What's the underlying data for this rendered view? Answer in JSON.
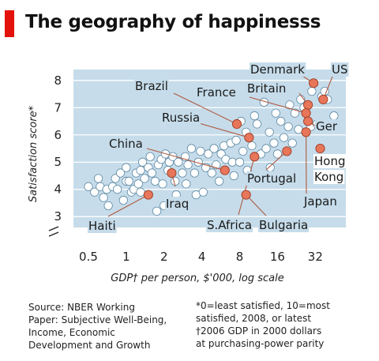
{
  "title": "The geography of happinesss",
  "source_lines": [
    "Source: NBER Working",
    "Paper: Subjective Well-Being,",
    "Income, Economic",
    "Development and Growth"
  ],
  "footnote_lines": [
    "*0=least satisfied, 10=most",
    "satisfied, 2008, or latest",
    "†2006 GDP in 2000 dollars",
    "at purchasing-power parity"
  ],
  "colors": {
    "accent_red": "#e3120b",
    "plot_background": "#c6dcea",
    "gridline": "#ffffff",
    "highlight_fill": "#e8765a",
    "highlight_stroke": "#9e3b24",
    "leader_line": "#b05a40",
    "other_fill": "#ffffff",
    "other_stroke": "#5f8aa6"
  },
  "chart_data": {
    "type": "scatter",
    "title": "The geography of happinesss",
    "xlabel": "GDP† per person, $'000, log scale",
    "ylabel": "Satisfaction score*",
    "x_scale": "log2",
    "xlim": [
      0.38,
      56
    ],
    "ylim": [
      2.6,
      8.4
    ],
    "x_ticks": [
      0.5,
      1,
      2,
      4,
      8,
      16,
      32
    ],
    "x_tick_labels": [
      "0.5",
      "1",
      "2",
      "4",
      "8",
      "16",
      "32"
    ],
    "y_ticks": [
      3,
      4,
      5,
      6,
      7,
      8
    ],
    "y_tick_labels": [
      "3",
      "4",
      "5",
      "6",
      "7",
      "8"
    ],
    "y_axis_break": true,
    "grid": "horizontal",
    "legend": "none",
    "highlighted": [
      {
        "label": "Denmark",
        "x": 31,
        "y": 7.9
      },
      {
        "label": "US",
        "x": 37,
        "y": 7.3
      },
      {
        "label": "Britain",
        "x": 28,
        "y": 7.1
      },
      {
        "label": "France",
        "x": 27,
        "y": 6.8
      },
      {
        "label": "Ger",
        "x": 28,
        "y": 6.5
      },
      {
        "label": "Brazil",
        "x": 7.6,
        "y": 6.4
      },
      {
        "label": "Russia",
        "x": 9.5,
        "y": 5.9
      },
      {
        "label": "China",
        "x": 6.1,
        "y": 4.7
      },
      {
        "label": "S.Africa",
        "x": 10.5,
        "y": 5.2
      },
      {
        "label": "Portugal",
        "x": 19,
        "y": 5.4
      },
      {
        "label": "Hong Kong",
        "x": 35,
        "y": 5.5
      },
      {
        "label": "Japan",
        "x": 27,
        "y": 6.1
      },
      {
        "label": "Bulgaria",
        "x": 9,
        "y": 3.8
      },
      {
        "label": "Iraq",
        "x": 2.3,
        "y": 4.6
      },
      {
        "label": "Haiti",
        "x": 1.5,
        "y": 3.8
      }
    ],
    "others": [
      [
        0.5,
        4.1
      ],
      [
        0.56,
        3.9
      ],
      [
        0.6,
        4.4
      ],
      [
        0.62,
        4.1
      ],
      [
        0.66,
        3.7
      ],
      [
        0.7,
        4.0
      ],
      [
        0.72,
        3.4
      ],
      [
        0.78,
        4.1
      ],
      [
        0.82,
        4.4
      ],
      [
        0.85,
        4.0
      ],
      [
        0.9,
        4.6
      ],
      [
        0.95,
        3.6
      ],
      [
        1.0,
        4.3
      ],
      [
        1.0,
        4.8
      ],
      [
        1.05,
        4.3
      ],
      [
        1.1,
        3.9
      ],
      [
        1.15,
        4.0
      ],
      [
        1.2,
        4.6
      ],
      [
        1.25,
        4.2
      ],
      [
        1.3,
        4.7
      ],
      [
        1.3,
        3.9
      ],
      [
        1.35,
        5.0
      ],
      [
        1.4,
        4.4
      ],
      [
        1.5,
        4.8
      ],
      [
        1.55,
        5.2
      ],
      [
        1.6,
        4.6
      ],
      [
        1.7,
        4.3
      ],
      [
        1.75,
        3.2
      ],
      [
        1.8,
        4.9
      ],
      [
        1.9,
        5.1
      ],
      [
        1.95,
        4.2
      ],
      [
        2.0,
        3.4
      ],
      [
        2.05,
        5.3
      ],
      [
        2.15,
        4.7
      ],
      [
        2.2,
        5.0
      ],
      [
        2.35,
        5.2
      ],
      [
        2.45,
        4.3
      ],
      [
        2.5,
        3.8
      ],
      [
        2.6,
        5.0
      ],
      [
        2.8,
        4.6
      ],
      [
        2.95,
        5.2
      ],
      [
        3.0,
        4.2
      ],
      [
        3.1,
        4.9
      ],
      [
        3.3,
        5.5
      ],
      [
        3.5,
        4.6
      ],
      [
        3.6,
        3.8
      ],
      [
        3.75,
        5.0
      ],
      [
        3.9,
        5.4
      ],
      [
        4.1,
        3.9
      ],
      [
        4.3,
        4.8
      ],
      [
        4.5,
        5.3
      ],
      [
        4.8,
        4.6
      ],
      [
        5.0,
        5.5
      ],
      [
        5.2,
        4.9
      ],
      [
        5.5,
        4.3
      ],
      [
        5.7,
        5.3
      ],
      [
        6.0,
        5.6
      ],
      [
        6.2,
        5.1
      ],
      [
        6.8,
        5.7
      ],
      [
        7.0,
        5.0
      ],
      [
        7.2,
        4.5
      ],
      [
        7.5,
        5.8
      ],
      [
        8.0,
        5.0
      ],
      [
        8.2,
        6.5
      ],
      [
        8.5,
        5.4
      ],
      [
        9.0,
        6.1
      ],
      [
        9.2,
        4.7
      ],
      [
        10.0,
        5.6
      ],
      [
        10.5,
        6.7
      ],
      [
        11.0,
        6.4
      ],
      [
        11.8,
        5.3
      ],
      [
        12.5,
        7.2
      ],
      [
        13.0,
        5.5
      ],
      [
        13.8,
        6.1
      ],
      [
        14.0,
        4.8
      ],
      [
        15.0,
        5.7
      ],
      [
        15.5,
        6.8
      ],
      [
        16.0,
        5.3
      ],
      [
        17.0,
        6.5
      ],
      [
        18.0,
        5.9
      ],
      [
        19.5,
        6.3
      ],
      [
        20.0,
        7.1
      ],
      [
        21.0,
        5.7
      ],
      [
        22.0,
        6.8
      ],
      [
        23.5,
        6.2
      ],
      [
        24.5,
        7.3
      ],
      [
        26.0,
        7.0
      ],
      [
        29.5,
        6.3
      ],
      [
        30.0,
        7.6
      ],
      [
        33.0,
        6.4
      ],
      [
        36.0,
        7.4
      ],
      [
        38.0,
        7.6
      ],
      [
        40.0,
        7.3
      ],
      [
        45.0,
        6.7
      ]
    ]
  }
}
